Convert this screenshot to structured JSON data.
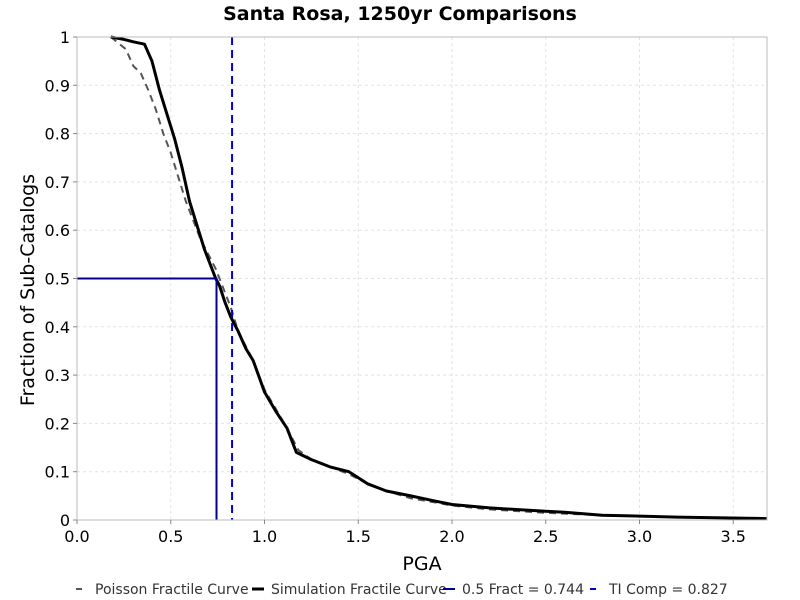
{
  "chart_data": {
    "type": "line",
    "title": "Santa Rosa, 1250yr Comparisons",
    "xlabel": "PGA",
    "ylabel": "Fraction of Sub-Catalogs",
    "xlim": [
      0,
      3.68
    ],
    "ylim": [
      0,
      1
    ],
    "x_ticks": [
      "0.0",
      "0.5",
      "1.0",
      "1.5",
      "2.0",
      "2.5",
      "3.0",
      "3.5"
    ],
    "y_ticks": [
      "0",
      "0.1",
      "0.2",
      "0.3",
      "0.4",
      "0.5",
      "0.6",
      "0.7",
      "0.8",
      "0.9",
      "1"
    ],
    "grid": true,
    "legend_position": "bottom",
    "series": [
      {
        "name": "Poisson Fractile Curve",
        "color": "#555555",
        "style": "dashed",
        "x": [
          0.18,
          0.26,
          0.3,
          0.34,
          0.38,
          0.42,
          0.46,
          0.5,
          0.54,
          0.58,
          0.62,
          0.66,
          0.7,
          0.74,
          0.78,
          0.82,
          0.86,
          0.9,
          0.94,
          1.0,
          1.06,
          1.12,
          1.18,
          1.25,
          1.35,
          1.45,
          1.55,
          1.65,
          1.78,
          1.9,
          2.0,
          2.2,
          2.5,
          2.8,
          3.2,
          3.68
        ],
        "y": [
          1.0,
          0.975,
          0.94,
          0.925,
          0.89,
          0.85,
          0.8,
          0.76,
          0.71,
          0.66,
          0.62,
          0.58,
          0.55,
          0.52,
          0.48,
          0.44,
          0.39,
          0.36,
          0.33,
          0.27,
          0.23,
          0.19,
          0.145,
          0.125,
          0.11,
          0.095,
          0.075,
          0.06,
          0.045,
          0.037,
          0.03,
          0.022,
          0.015,
          0.01,
          0.006,
          0.003
        ]
      },
      {
        "name": "Simulation Fractile Curve",
        "color": "#000000",
        "style": "solid",
        "x": [
          0.18,
          0.25,
          0.3,
          0.36,
          0.4,
          0.44,
          0.48,
          0.52,
          0.56,
          0.6,
          0.64,
          0.68,
          0.71,
          0.74,
          0.76,
          0.79,
          0.82,
          0.86,
          0.9,
          0.94,
          1.0,
          1.06,
          1.12,
          1.17,
          1.25,
          1.35,
          1.45,
          1.55,
          1.65,
          1.78,
          1.9,
          2.0,
          2.2,
          2.5,
          2.6,
          2.8,
          3.2,
          3.68
        ],
        "y": [
          1.0,
          0.995,
          0.99,
          0.985,
          0.95,
          0.89,
          0.84,
          0.79,
          0.73,
          0.66,
          0.61,
          0.56,
          0.53,
          0.5,
          0.485,
          0.45,
          0.42,
          0.39,
          0.355,
          0.33,
          0.265,
          0.225,
          0.19,
          0.14,
          0.125,
          0.11,
          0.1,
          0.075,
          0.06,
          0.05,
          0.04,
          0.032,
          0.025,
          0.018,
          0.016,
          0.01,
          0.006,
          0.003
        ]
      }
    ],
    "annotations": [
      {
        "name": "0.5 Fract = 0.744",
        "color": "#00008b",
        "style": "solid",
        "x": 0.744,
        "y": 0.5
      },
      {
        "name": "TI Comp = 0.827",
        "color": "#0000cc",
        "style": "dashed",
        "x": 0.827
      }
    ]
  }
}
